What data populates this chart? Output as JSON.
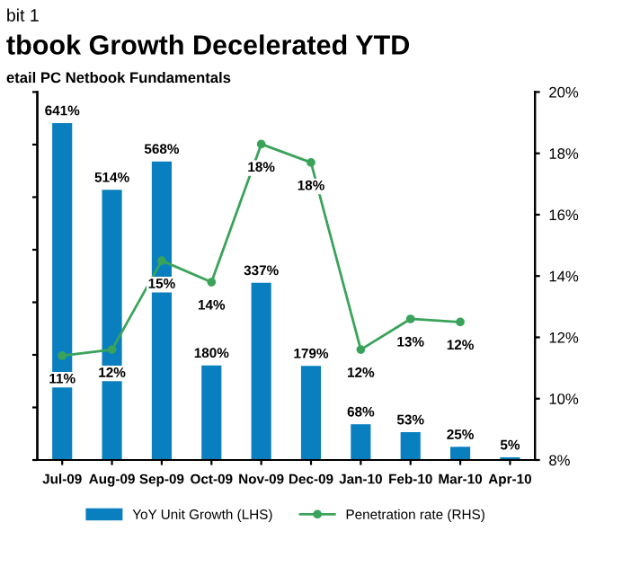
{
  "chart_data": {
    "type": "bar",
    "title": "tbook Growth Decelerated YTD",
    "subtitle": "etail PC Netbook Fundamentals",
    "annotations": [
      "bit 1"
    ],
    "categories": [
      "Jul-09",
      "Aug-09",
      "Sep-09",
      "Oct-09",
      "Nov-09",
      "Dec-09",
      "Jan-10",
      "Feb-10",
      "Mar-10",
      "Apr-10"
    ],
    "series": [
      {
        "name": "YoY Unit Growth (LHS)",
        "color": "#0a7fc0",
        "values": [
          641,
          514,
          568,
          180,
          337,
          179,
          68,
          53,
          25,
          5
        ],
        "value_labels": [
          "641%",
          "514%",
          "568%",
          "180%",
          "337%",
          "179%",
          "68%",
          "53%",
          "25%",
          "5%"
        ]
      },
      {
        "name": "Penetration rate (RHS)",
        "type": "line",
        "axis": "y2",
        "color": "#3aa35a",
        "marker": "circle",
        "values": [
          11.4,
          11.6,
          14.5,
          13.8,
          18.3,
          17.7,
          11.6,
          12.6,
          12.5,
          null
        ],
        "value_labels": [
          "11%",
          "12%",
          "15%",
          "14%",
          "18%",
          "18%",
          "12%",
          "13%",
          "12%",
          null
        ]
      }
    ],
    "ylim": [
      0,
      700
    ],
    "yticks": [
      {
        "value": 0,
        "label": null
      },
      {
        "value": 100,
        "label": null
      },
      {
        "value": 200,
        "label": null
      },
      {
        "value": 300,
        "label": null
      },
      {
        "value": 400,
        "label": null
      },
      {
        "value": 500,
        "label": null
      },
      {
        "value": 600,
        "label": null
      },
      {
        "value": 700,
        "label": null
      }
    ],
    "y2lim": [
      8,
      20
    ],
    "y2ticks": [
      {
        "value": 8,
        "label": "8%"
      },
      {
        "value": 10,
        "label": "10%"
      },
      {
        "value": 12,
        "label": "12%"
      },
      {
        "value": 14,
        "label": "14%"
      },
      {
        "value": 16,
        "label": "16%"
      },
      {
        "value": 18,
        "label": "18%"
      },
      {
        "value": 20,
        "label": "20%"
      }
    ],
    "grid": false,
    "legend": "bottom"
  }
}
